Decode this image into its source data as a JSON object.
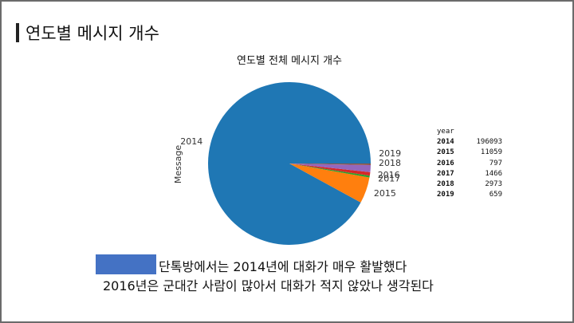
{
  "slide": {
    "title": "연도별 메시지 개수",
    "note_line1": "단톡방에서는 2014년에 대화가 매우 활발했다",
    "note_line2": "2016년은 군대간 사람이 많아서 대화가 적지 않았나 생각된다",
    "redaction_color": "#4472c4"
  },
  "chart_data": {
    "type": "pie",
    "title": "연도별 전체 메시지 개수",
    "ylabel": "Message",
    "labels": [
      "2014",
      "2015",
      "2016",
      "2017",
      "2018",
      "2019"
    ],
    "values": [
      196093,
      11059,
      797,
      1466,
      2973,
      659
    ],
    "colors": [
      "#1f77b4",
      "#ff7f0e",
      "#2ca02c",
      "#d62728",
      "#9467bd",
      "#8c564b"
    ],
    "start_angle_deg": 0,
    "direction": "counterclockwise"
  },
  "table": {
    "index_name": "year",
    "rows": [
      {
        "year": "2014",
        "value": "196093"
      },
      {
        "year": "2015",
        "value": "11059"
      },
      {
        "year": "2016",
        "value": "797"
      },
      {
        "year": "2017",
        "value": "1466"
      },
      {
        "year": "2018",
        "value": "2973"
      },
      {
        "year": "2019",
        "value": "659"
      }
    ]
  }
}
